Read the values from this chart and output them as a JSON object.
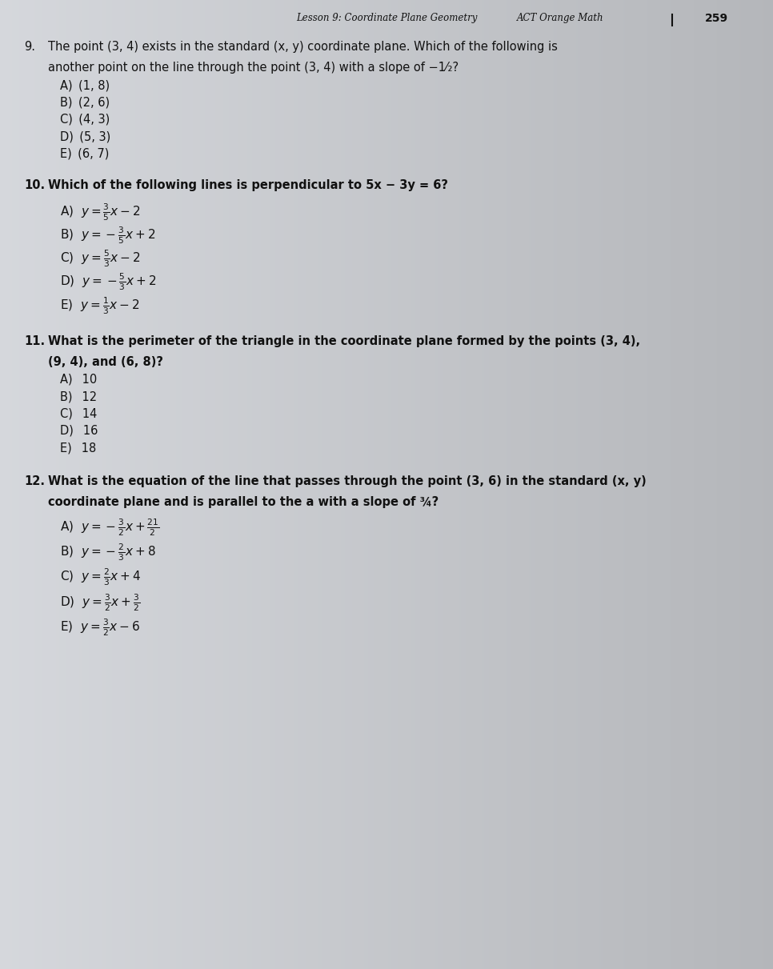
{
  "header_center": "Lesson 9: Coordinate Plane Geometry",
  "header_right_label": "ACT Orange Math",
  "page_number": "259",
  "bg_left": "#c8cdd4",
  "bg_right": "#b0b5bb",
  "page_left": "#dde2e8",
  "page_right": "#c5cad0",
  "text_color": "#111111",
  "q9_num": "9.",
  "q9_line1": "The point (3, 4) exists in the standard (x, y) coordinate plane. Which of the following is",
  "q9_line2": "another point on the line through the point (3, 4) with a slope of −1⁄₂?",
  "q9_choices": [
    "A) (1, 8)",
    "B) (2, 6)",
    "C) (4, 3)",
    "D) (5, 3)",
    "E) (6, 7)"
  ],
  "q10_num": "10.",
  "q10_line1": "Which of the following lines is perpendicular to 5x − 3y = 6?",
  "q10_choices_plain": [
    "A)",
    "B)",
    "C)",
    "D)",
    "E)"
  ],
  "q10_choices_math": [
    "$y = \\frac{3}{5}x - 2$",
    "$y = -\\frac{3}{5}x + 2$",
    "$y = \\frac{5}{3}x - 2$",
    "$y = -\\frac{5}{3}x + 2$",
    "$y = \\frac{1}{3}x - 2$"
  ],
  "q11_num": "11.",
  "q11_line1": "What is the perimeter of the triangle in the coordinate plane formed by the points (3, 4),",
  "q11_line2": "(9, 4), and (6, 8)?",
  "q11_choices": [
    "A)  10",
    "B)  12",
    "C)  14",
    "D)  16",
    "E)  18"
  ],
  "q12_num": "12.",
  "q12_line1": "What is the equation of the line that passes through the point (3, 6) in the standard (x, y)",
  "q12_line2": "coordinate plane and is parallel to the a with a slope of ¾?",
  "q12_choices_plain": [
    "A)",
    "B)",
    "C)",
    "D)",
    "E)"
  ],
  "q12_choices_math": [
    "$y = -\\frac{3}{2}x + \\frac{21}{2}$",
    "$y = -\\frac{2}{3}x + 8$",
    "$y = \\frac{2}{3}x + 4$",
    "$y = \\frac{3}{2}x + \\frac{3}{2}$",
    "$y = \\frac{3}{2}x - 6$"
  ],
  "figsize": [
    9.66,
    12.11
  ],
  "dpi": 100
}
